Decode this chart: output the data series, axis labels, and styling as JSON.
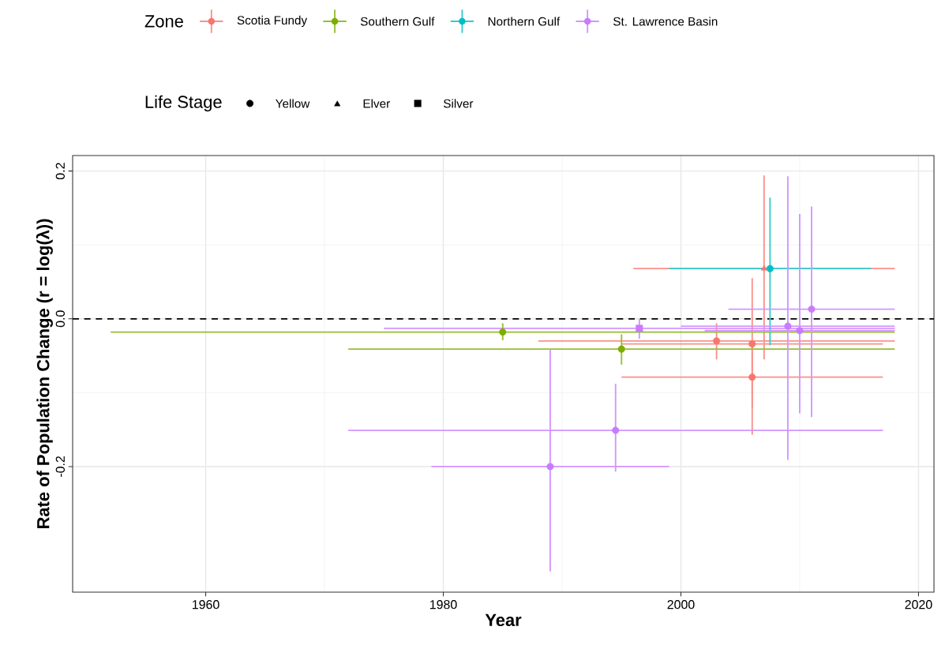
{
  "chart_data": {
    "type": "scatter",
    "xlabel": "Year",
    "ylabel": "Rate of Population Change (r = log(λ))",
    "legend_title": "Zone",
    "legend": "top",
    "grid": true,
    "xlim": [
      1948.8,
      2021.3
    ],
    "ylim": [
      -0.37,
      0.221
    ],
    "xticks": [
      1960,
      1980,
      2000,
      2020
    ],
    "yticks": [
      0.2,
      {
        "value": 0,
        "label": "0.0"
      },
      -0.2
    ],
    "ref_lines": [
      {
        "axis": "y",
        "value": 0,
        "color": "#000000",
        "line_style": "dashed"
      }
    ],
    "annotations": [
      "Life Stage",
      "Yellow",
      "Elver",
      "Silver"
    ],
    "series": [
      {
        "name": "Scotia Fundy",
        "color": "#F8766D",
        "marker": "circle",
        "x": [
          2003,
          2006,
          2006
        ],
        "values": [
          -0.03,
          -0.034,
          -0.079
        ],
        "errors": [
          [
            -0.055,
            -0.006
          ],
          [
            -0.12,
            0.055
          ],
          [
            -0.157,
            -0.034
          ]
        ],
        "xerrors": [
          [
            1988,
            2018
          ],
          [
            1995,
            2017
          ],
          [
            1995,
            2017
          ]
        ]
      },
      {
        "name": "Southern Gulf",
        "color": "#7CAE00",
        "marker": "circle",
        "x": [
          1985,
          1995
        ],
        "values": [
          -0.018,
          -0.041
        ],
        "errors": [
          [
            -0.029,
            -0.006
          ],
          [
            -0.062,
            -0.021
          ]
        ],
        "xerrors": [
          [
            1952,
            2018
          ],
          [
            1972,
            2018
          ]
        ]
      },
      {
        "name": "Northern Gulf",
        "color": "#00BFC4",
        "marker": "circle",
        "x": [
          2007.5
        ],
        "values": [
          0.068
        ],
        "errors": [
          [
            -0.036,
            0.164
          ]
        ],
        "xerrors": [
          [
            1999,
            2016
          ]
        ]
      },
      {
        "name": "St. Lawrence Basin",
        "color": "#C77CFF",
        "marker": "circle",
        "x": [
          1989,
          1994.5,
          2009,
          2010,
          2011
        ],
        "values": [
          -0.2,
          -0.151,
          -0.01,
          -0.016,
          0.013
        ],
        "errors": [
          [
            -0.342,
            -0.041
          ],
          [
            -0.207,
            -0.088
          ],
          [
            -0.191,
            0.193
          ],
          [
            -0.128,
            0.142
          ],
          [
            -0.133,
            0.152
          ]
        ],
        "xerrors": [
          [
            1979,
            1999
          ],
          [
            1972,
            2017
          ],
          [
            2000,
            2018
          ],
          [
            2002,
            2018
          ],
          [
            2004,
            2018
          ]
        ]
      },
      {
        "color": "#F8766D",
        "marker": "triangle",
        "x": [
          2007
        ],
        "values": [
          0.068
        ],
        "errors": [
          [
            -0.055,
            0.194
          ]
        ],
        "xerrors": [
          [
            1996,
            2018
          ]
        ]
      },
      {
        "color": "#C77CFF",
        "marker": "square",
        "x": [
          1996.5
        ],
        "values": [
          -0.013
        ],
        "errors": [
          [
            -0.027,
            0.0
          ]
        ],
        "xerrors": [
          [
            1975,
            2018
          ]
        ]
      }
    ]
  }
}
